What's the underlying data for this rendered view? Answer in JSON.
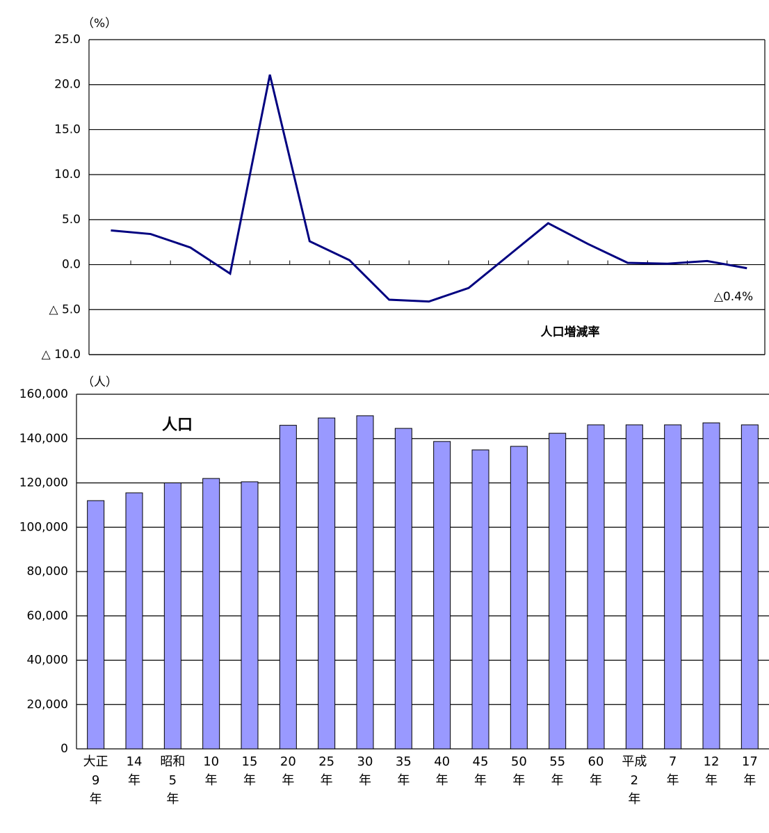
{
  "chart_data": [
    {
      "type": "line",
      "unit_label": "（%）",
      "series": [
        {
          "name": "人口増減率",
          "color": "#000080",
          "values": [
            3.8,
            3.4,
            1.9,
            -1.0,
            21.1,
            2.6,
            0.5,
            -3.9,
            -4.1,
            -2.6,
            1.0,
            4.6,
            2.3,
            0.2,
            0.1,
            0.4,
            -0.4
          ]
        }
      ],
      "annotations": [
        "△0.4%"
      ],
      "ylim": [
        -10,
        25
      ],
      "yticks": [
        {
          "value": -10,
          "label": "△ 10.0"
        },
        {
          "value": -5,
          "label": "△ 5.0"
        },
        {
          "value": 0,
          "label": "0.0"
        },
        {
          "value": 5,
          "label": "5.0"
        },
        {
          "value": 10,
          "label": "10.0"
        },
        {
          "value": 15,
          "label": "15.0"
        },
        {
          "value": 20,
          "label": "20.0"
        },
        {
          "value": 25,
          "label": "25.0"
        }
      ],
      "grid": true
    },
    {
      "type": "bar",
      "unit_label": "（人）",
      "categories": [
        "大正\n9\n年",
        "14\n年",
        "昭和\n5\n年",
        "10\n年",
        "15\n年",
        "20\n年",
        "25\n年",
        "30\n年",
        "35\n年",
        "40\n年",
        "45\n年",
        "50\n年",
        "55\n年",
        "60\n年",
        "平成\n2\n年",
        "7\n年",
        "12\n年",
        "17\n年"
      ],
      "series": [
        {
          "name": "人口",
          "color": "#9999ff",
          "values": [
            112000,
            115500,
            120000,
            122000,
            120500,
            146000,
            149300,
            150300,
            144600,
            138700,
            134900,
            136500,
            142400,
            146200,
            146200,
            146200,
            147100,
            146200
          ]
        }
      ],
      "ylim": [
        0,
        160000
      ],
      "yticks": [
        0,
        {
          "value": 20000,
          "label": "20,000"
        },
        {
          "value": 40000,
          "label": "40,000"
        },
        {
          "value": 60000,
          "label": "60,000"
        },
        {
          "value": 80000,
          "label": "80,000"
        },
        {
          "value": 100000,
          "label": "100,000"
        },
        {
          "value": 120000,
          "label": "120,000"
        },
        {
          "value": 140000,
          "label": "140,000"
        },
        {
          "value": 160000,
          "label": "160,000"
        }
      ],
      "grid": true
    }
  ]
}
